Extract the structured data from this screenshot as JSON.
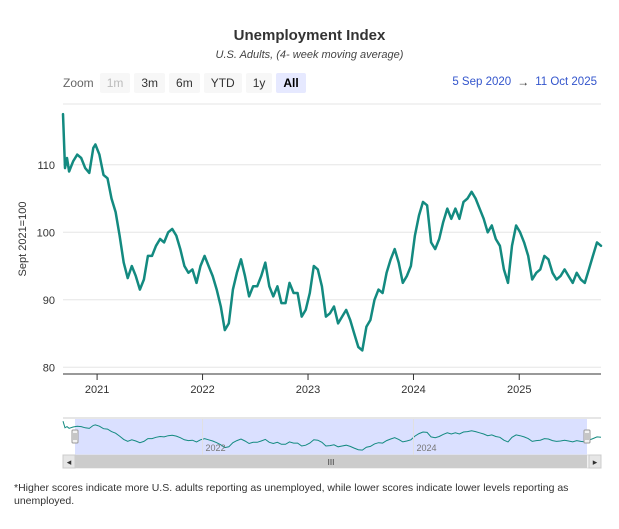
{
  "chart_data": {
    "type": "line",
    "title": "Unemployment Index",
    "subtitle": "U.S. Adults, (4- week moving average)",
    "ylabel": "Sept 2021=100",
    "xlabel": "",
    "ylim": [
      79,
      119
    ],
    "xlim": [
      "2020-09-05",
      "2025-10-11"
    ],
    "y_ticks": [
      80,
      90,
      100,
      110
    ],
    "x_ticks": [
      {
        "label": "2021",
        "date": "2021-01-01"
      },
      {
        "label": "2022",
        "date": "2022-01-01"
      },
      {
        "label": "2023",
        "date": "2023-01-01"
      },
      {
        "label": "2024",
        "date": "2024-01-01"
      },
      {
        "label": "2025",
        "date": "2025-01-01"
      }
    ],
    "grid": true,
    "line_color": "#138a80",
    "series": [
      {
        "name": "",
        "points": [
          [
            "2020-09-05",
            117.5
          ],
          [
            "2020-09-12",
            109.5
          ],
          [
            "2020-09-19",
            111
          ],
          [
            "2020-09-26",
            109
          ],
          [
            "2020-10-10",
            110.5
          ],
          [
            "2020-10-24",
            111.5
          ],
          [
            "2020-11-07",
            111
          ],
          [
            "2020-11-21",
            109.5
          ],
          [
            "2020-12-05",
            108.8
          ],
          [
            "2020-12-19",
            112.5
          ],
          [
            "2020-12-26",
            113
          ],
          [
            "2021-01-09",
            111.5
          ],
          [
            "2021-01-23",
            108.5
          ],
          [
            "2021-02-06",
            108
          ],
          [
            "2021-02-20",
            105
          ],
          [
            "2021-03-06",
            103
          ],
          [
            "2021-03-20",
            99.5
          ],
          [
            "2021-04-03",
            95.5
          ],
          [
            "2021-04-17",
            93.2
          ],
          [
            "2021-05-01",
            95
          ],
          [
            "2021-05-15",
            93.5
          ],
          [
            "2021-05-29",
            91.5
          ],
          [
            "2021-06-12",
            93
          ],
          [
            "2021-06-26",
            96.5
          ],
          [
            "2021-07-10",
            96.5
          ],
          [
            "2021-07-24",
            98
          ],
          [
            "2021-08-07",
            99
          ],
          [
            "2021-08-21",
            98.5
          ],
          [
            "2021-09-04",
            100
          ],
          [
            "2021-09-18",
            100.5
          ],
          [
            "2021-10-02",
            99.5
          ],
          [
            "2021-10-16",
            97.5
          ],
          [
            "2021-10-30",
            95
          ],
          [
            "2021-11-13",
            94
          ],
          [
            "2021-11-27",
            94.5
          ],
          [
            "2021-12-11",
            92.5
          ],
          [
            "2021-12-25",
            95
          ],
          [
            "2022-01-08",
            96.5
          ],
          [
            "2022-01-22",
            95
          ],
          [
            "2022-02-05",
            93.5
          ],
          [
            "2022-02-19",
            91.5
          ],
          [
            "2022-03-05",
            89
          ],
          [
            "2022-03-19",
            85.5
          ],
          [
            "2022-04-02",
            86.5
          ],
          [
            "2022-04-16",
            91.5
          ],
          [
            "2022-04-30",
            94
          ],
          [
            "2022-05-14",
            96
          ],
          [
            "2022-05-28",
            93.5
          ],
          [
            "2022-06-11",
            90.5
          ],
          [
            "2022-06-25",
            92
          ],
          [
            "2022-07-09",
            92
          ],
          [
            "2022-07-23",
            93.5
          ],
          [
            "2022-08-06",
            95.5
          ],
          [
            "2022-08-20",
            92
          ],
          [
            "2022-09-03",
            90.5
          ],
          [
            "2022-09-17",
            92
          ],
          [
            "2022-10-01",
            89.5
          ],
          [
            "2022-10-15",
            89.5
          ],
          [
            "2022-10-29",
            92.5
          ],
          [
            "2022-11-12",
            91
          ],
          [
            "2022-11-26",
            91
          ],
          [
            "2022-12-10",
            87.5
          ],
          [
            "2022-12-24",
            88.5
          ],
          [
            "2023-01-07",
            91
          ],
          [
            "2023-01-21",
            95
          ],
          [
            "2023-02-04",
            94.5
          ],
          [
            "2023-02-18",
            92
          ],
          [
            "2023-03-04",
            87.5
          ],
          [
            "2023-03-18",
            88
          ],
          [
            "2023-04-01",
            89
          ],
          [
            "2023-04-15",
            86.5
          ],
          [
            "2023-04-29",
            87.5
          ],
          [
            "2023-05-13",
            88.5
          ],
          [
            "2023-05-27",
            87
          ],
          [
            "2023-06-10",
            85
          ],
          [
            "2023-06-24",
            83
          ],
          [
            "2023-07-08",
            82.5
          ],
          [
            "2023-07-22",
            86
          ],
          [
            "2023-08-05",
            87
          ],
          [
            "2023-08-19",
            90
          ],
          [
            "2023-09-02",
            91.5
          ],
          [
            "2023-09-16",
            91
          ],
          [
            "2023-09-30",
            94
          ],
          [
            "2023-10-14",
            96
          ],
          [
            "2023-10-28",
            97.5
          ],
          [
            "2023-11-11",
            95.5
          ],
          [
            "2023-11-25",
            92.5
          ],
          [
            "2023-12-09",
            93.5
          ],
          [
            "2023-12-23",
            95
          ],
          [
            "2024-01-06",
            99.5
          ],
          [
            "2024-01-20",
            102.5
          ],
          [
            "2024-02-03",
            104.5
          ],
          [
            "2024-02-17",
            104
          ],
          [
            "2024-03-02",
            98.5
          ],
          [
            "2024-03-16",
            97.5
          ],
          [
            "2024-03-30",
            99
          ],
          [
            "2024-04-13",
            101.5
          ],
          [
            "2024-04-27",
            103.5
          ],
          [
            "2024-05-11",
            102
          ],
          [
            "2024-05-25",
            103.5
          ],
          [
            "2024-06-08",
            102
          ],
          [
            "2024-06-22",
            104.5
          ],
          [
            "2024-07-06",
            105
          ],
          [
            "2024-07-20",
            106
          ],
          [
            "2024-08-03",
            105
          ],
          [
            "2024-08-17",
            103.5
          ],
          [
            "2024-08-31",
            102
          ],
          [
            "2024-09-14",
            100
          ],
          [
            "2024-09-28",
            101
          ],
          [
            "2024-10-12",
            99
          ],
          [
            "2024-10-26",
            98
          ],
          [
            "2024-11-09",
            94.5
          ],
          [
            "2024-11-23",
            92.5
          ],
          [
            "2024-12-07",
            98
          ],
          [
            "2024-12-21",
            101
          ],
          [
            "2025-01-04",
            100
          ],
          [
            "2025-01-18",
            98.5
          ],
          [
            "2025-02-01",
            96.5
          ],
          [
            "2025-02-15",
            93
          ],
          [
            "2025-03-01",
            94
          ],
          [
            "2025-03-15",
            94.5
          ],
          [
            "2025-03-29",
            96.5
          ],
          [
            "2025-04-12",
            96
          ],
          [
            "2025-04-26",
            94
          ],
          [
            "2025-05-10",
            93
          ],
          [
            "2025-05-24",
            93.5
          ],
          [
            "2025-06-07",
            94.5
          ],
          [
            "2025-06-21",
            93.5
          ],
          [
            "2025-07-05",
            92.5
          ],
          [
            "2025-07-19",
            94
          ],
          [
            "2025-08-02",
            93
          ],
          [
            "2025-08-16",
            92.5
          ],
          [
            "2025-08-30",
            94.5
          ],
          [
            "2025-09-13",
            96.5
          ],
          [
            "2025-09-27",
            98.5
          ],
          [
            "2025-10-11",
            98
          ]
        ]
      }
    ],
    "navigator": {
      "x_ticks": [
        {
          "label": "2022",
          "date": "2022-01-01"
        },
        {
          "label": "2024",
          "date": "2024-01-01"
        }
      ],
      "scroll_label": "III",
      "left_arrow": "◂",
      "right_arrow": "▸"
    }
  },
  "zoom": {
    "label": "Zoom",
    "buttons": [
      {
        "label": "1m",
        "state": "disabled"
      },
      {
        "label": "3m",
        "state": "normal"
      },
      {
        "label": "6m",
        "state": "normal"
      },
      {
        "label": "YTD",
        "state": "normal"
      },
      {
        "label": "1y",
        "state": "normal"
      },
      {
        "label": "All",
        "state": "active"
      }
    ]
  },
  "range": {
    "from": "5 Sep 2020",
    "arrow": "→",
    "to": "11 Oct 2025"
  },
  "footnote": "*Higher scores indicate more U.S. adults reporting as unemployed, while lower scores indicate lower levels reporting as unemployed."
}
